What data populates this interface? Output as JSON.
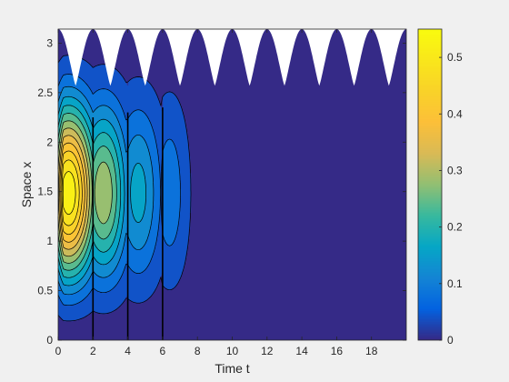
{
  "chart_data": {
    "type": "contour",
    "title": "",
    "xlabel": "Time t",
    "ylabel": "Space x",
    "xlim": [
      0,
      20
    ],
    "ylim": [
      0,
      3.14159
    ],
    "x_ticks": [
      0,
      2,
      4,
      6,
      8,
      10,
      12,
      14,
      16,
      18
    ],
    "x_tick_labels": [
      "0",
      "2",
      "4",
      "6",
      "8",
      "10",
      "12",
      "14",
      "16",
      "18"
    ],
    "y_ticks": [
      0,
      0.5,
      1,
      1.5,
      2,
      2.5,
      3
    ],
    "y_tick_labels": [
      "0",
      "0.5",
      "1",
      "1.5",
      "2",
      "2.5",
      "3"
    ],
    "colorbar": {
      "colormap": "parula",
      "clim": [
        0,
        0.55
      ],
      "ticks": [
        0,
        0.1,
        0.2,
        0.3,
        0.4,
        0.5
      ],
      "tick_labels": [
        "0",
        "0.1",
        "0.2",
        "0.3",
        "0.4",
        "0.5"
      ]
    },
    "field": {
      "peak_value": 0.54,
      "peak_location": [
        0.6,
        1.35
      ],
      "pulse_times": [
        2,
        4,
        6
      ],
      "support_ends_at_t": 7.8
    },
    "moving_boundary": {
      "period": 2,
      "min_x": 2.57,
      "max_x": 3.14159,
      "cusp_times": [
        0,
        2,
        4,
        6,
        8,
        10,
        12,
        14,
        16,
        18,
        20
      ],
      "description": "White region above oscillating upper boundary (outside domain)"
    },
    "contour_levels": [
      0.02,
      0.06,
      0.1,
      0.14,
      0.18,
      0.22,
      0.26,
      0.3,
      0.34,
      0.38,
      0.42,
      0.46,
      0.5
    ],
    "grid": false
  },
  "colors": {
    "background": "#f0f0f0",
    "axes_bg": "#ffffff",
    "parula_low": "#352a87",
    "parula_high": "#f9fb0e",
    "contour_line": "#000000"
  }
}
